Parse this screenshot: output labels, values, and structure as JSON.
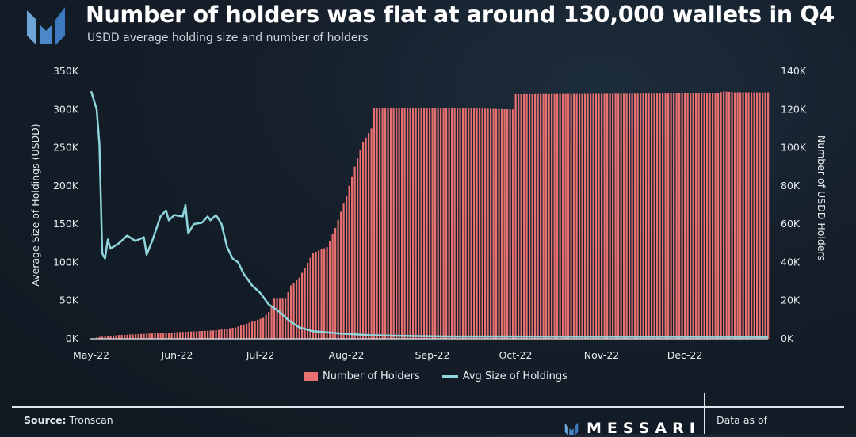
{
  "header": {
    "title": "Number of holders was flat at around 130,000 wallets in Q4",
    "subtitle": "USDD average holding size and number of holders",
    "logo_text": "Messari"
  },
  "footer": {
    "source_label": "Source:",
    "source_value": "Tronscan",
    "brand": "MESSARI",
    "data_as_of": "Data as of"
  },
  "colors": {
    "bars": "#e97070",
    "line": "#8fd6dc"
  },
  "chart_data": {
    "type": "bar+line",
    "title": "USDD average holding size and number of holders",
    "ylabel_left": "Average Size of Holdings (USDD)",
    "ylabel_right": "Number of USDD Holders",
    "ylim_left": [
      0,
      350000
    ],
    "ylim_right": [
      0,
      140000
    ],
    "yticks_left": [
      "0K",
      "50K",
      "100K",
      "150K",
      "200K",
      "250K",
      "300K",
      "350K"
    ],
    "yticks_right": [
      "0K",
      "20K",
      "40K",
      "60K",
      "80K",
      "100K",
      "120K",
      "140K"
    ],
    "xticks": [
      {
        "label": "May-22",
        "day": 0
      },
      {
        "label": "Jun-22",
        "day": 31
      },
      {
        "label": "Jul-22",
        "day": 61
      },
      {
        "label": "Aug-22",
        "day": 92
      },
      {
        "label": "Sep-22",
        "day": 123
      },
      {
        "label": "Oct-22",
        "day": 153
      },
      {
        "label": "Nov-22",
        "day": 184
      },
      {
        "label": "Dec-22",
        "day": 214
      }
    ],
    "x_start": "2022-05-01",
    "days": 245,
    "legend": [
      "Number of Holders",
      "Avg Size of Holdings"
    ],
    "legend_position": "bottom",
    "grid": false,
    "series": [
      {
        "name": "Number of Holders",
        "type": "bar",
        "unit": "thousands",
        "points_day_value": [
          [
            0,
            0
          ],
          [
            3,
            1
          ],
          [
            10,
            2
          ],
          [
            31,
            3.5
          ],
          [
            45,
            4.5
          ],
          [
            52,
            6
          ],
          [
            58,
            9
          ],
          [
            62,
            11
          ],
          [
            64,
            14
          ],
          [
            66,
            21
          ],
          [
            70,
            21
          ],
          [
            72,
            28
          ],
          [
            75,
            32
          ],
          [
            80,
            45
          ],
          [
            85,
            48
          ],
          [
            88,
            58
          ],
          [
            92,
            75
          ],
          [
            95,
            90
          ],
          [
            98,
            103
          ],
          [
            101,
            110
          ],
          [
            102,
            120.5
          ],
          [
            140,
            120.5
          ],
          [
            152,
            120
          ],
          [
            153,
            128
          ],
          [
            225,
            128.5
          ],
          [
            228,
            129.5
          ],
          [
            232,
            129
          ],
          [
            244,
            129
          ]
        ]
      },
      {
        "name": "Avg Size of Holdings",
        "type": "line",
        "unit": "thousands",
        "points_day_value": [
          [
            0,
            324
          ],
          [
            2,
            300
          ],
          [
            3,
            254
          ],
          [
            4,
            112
          ],
          [
            5,
            105
          ],
          [
            6,
            130
          ],
          [
            7,
            118
          ],
          [
            10,
            125
          ],
          [
            13,
            135
          ],
          [
            16,
            128
          ],
          [
            19,
            133
          ],
          [
            20,
            110
          ],
          [
            22,
            128
          ],
          [
            25,
            160
          ],
          [
            27,
            168
          ],
          [
            28,
            155
          ],
          [
            30,
            162
          ],
          [
            33,
            160
          ],
          [
            34,
            175
          ],
          [
            35,
            138
          ],
          [
            37,
            150
          ],
          [
            40,
            152
          ],
          [
            42,
            160
          ],
          [
            43,
            155
          ],
          [
            45,
            162
          ],
          [
            47,
            150
          ],
          [
            49,
            120
          ],
          [
            51,
            105
          ],
          [
            53,
            100
          ],
          [
            55,
            85
          ],
          [
            58,
            70
          ],
          [
            61,
            60
          ],
          [
            64,
            45
          ],
          [
            68,
            35
          ],
          [
            71,
            25
          ],
          [
            75,
            15
          ],
          [
            80,
            10
          ],
          [
            90,
            7
          ],
          [
            100,
            5
          ],
          [
            110,
            4
          ],
          [
            130,
            3
          ],
          [
            244,
            2.5
          ]
        ]
      }
    ]
  }
}
